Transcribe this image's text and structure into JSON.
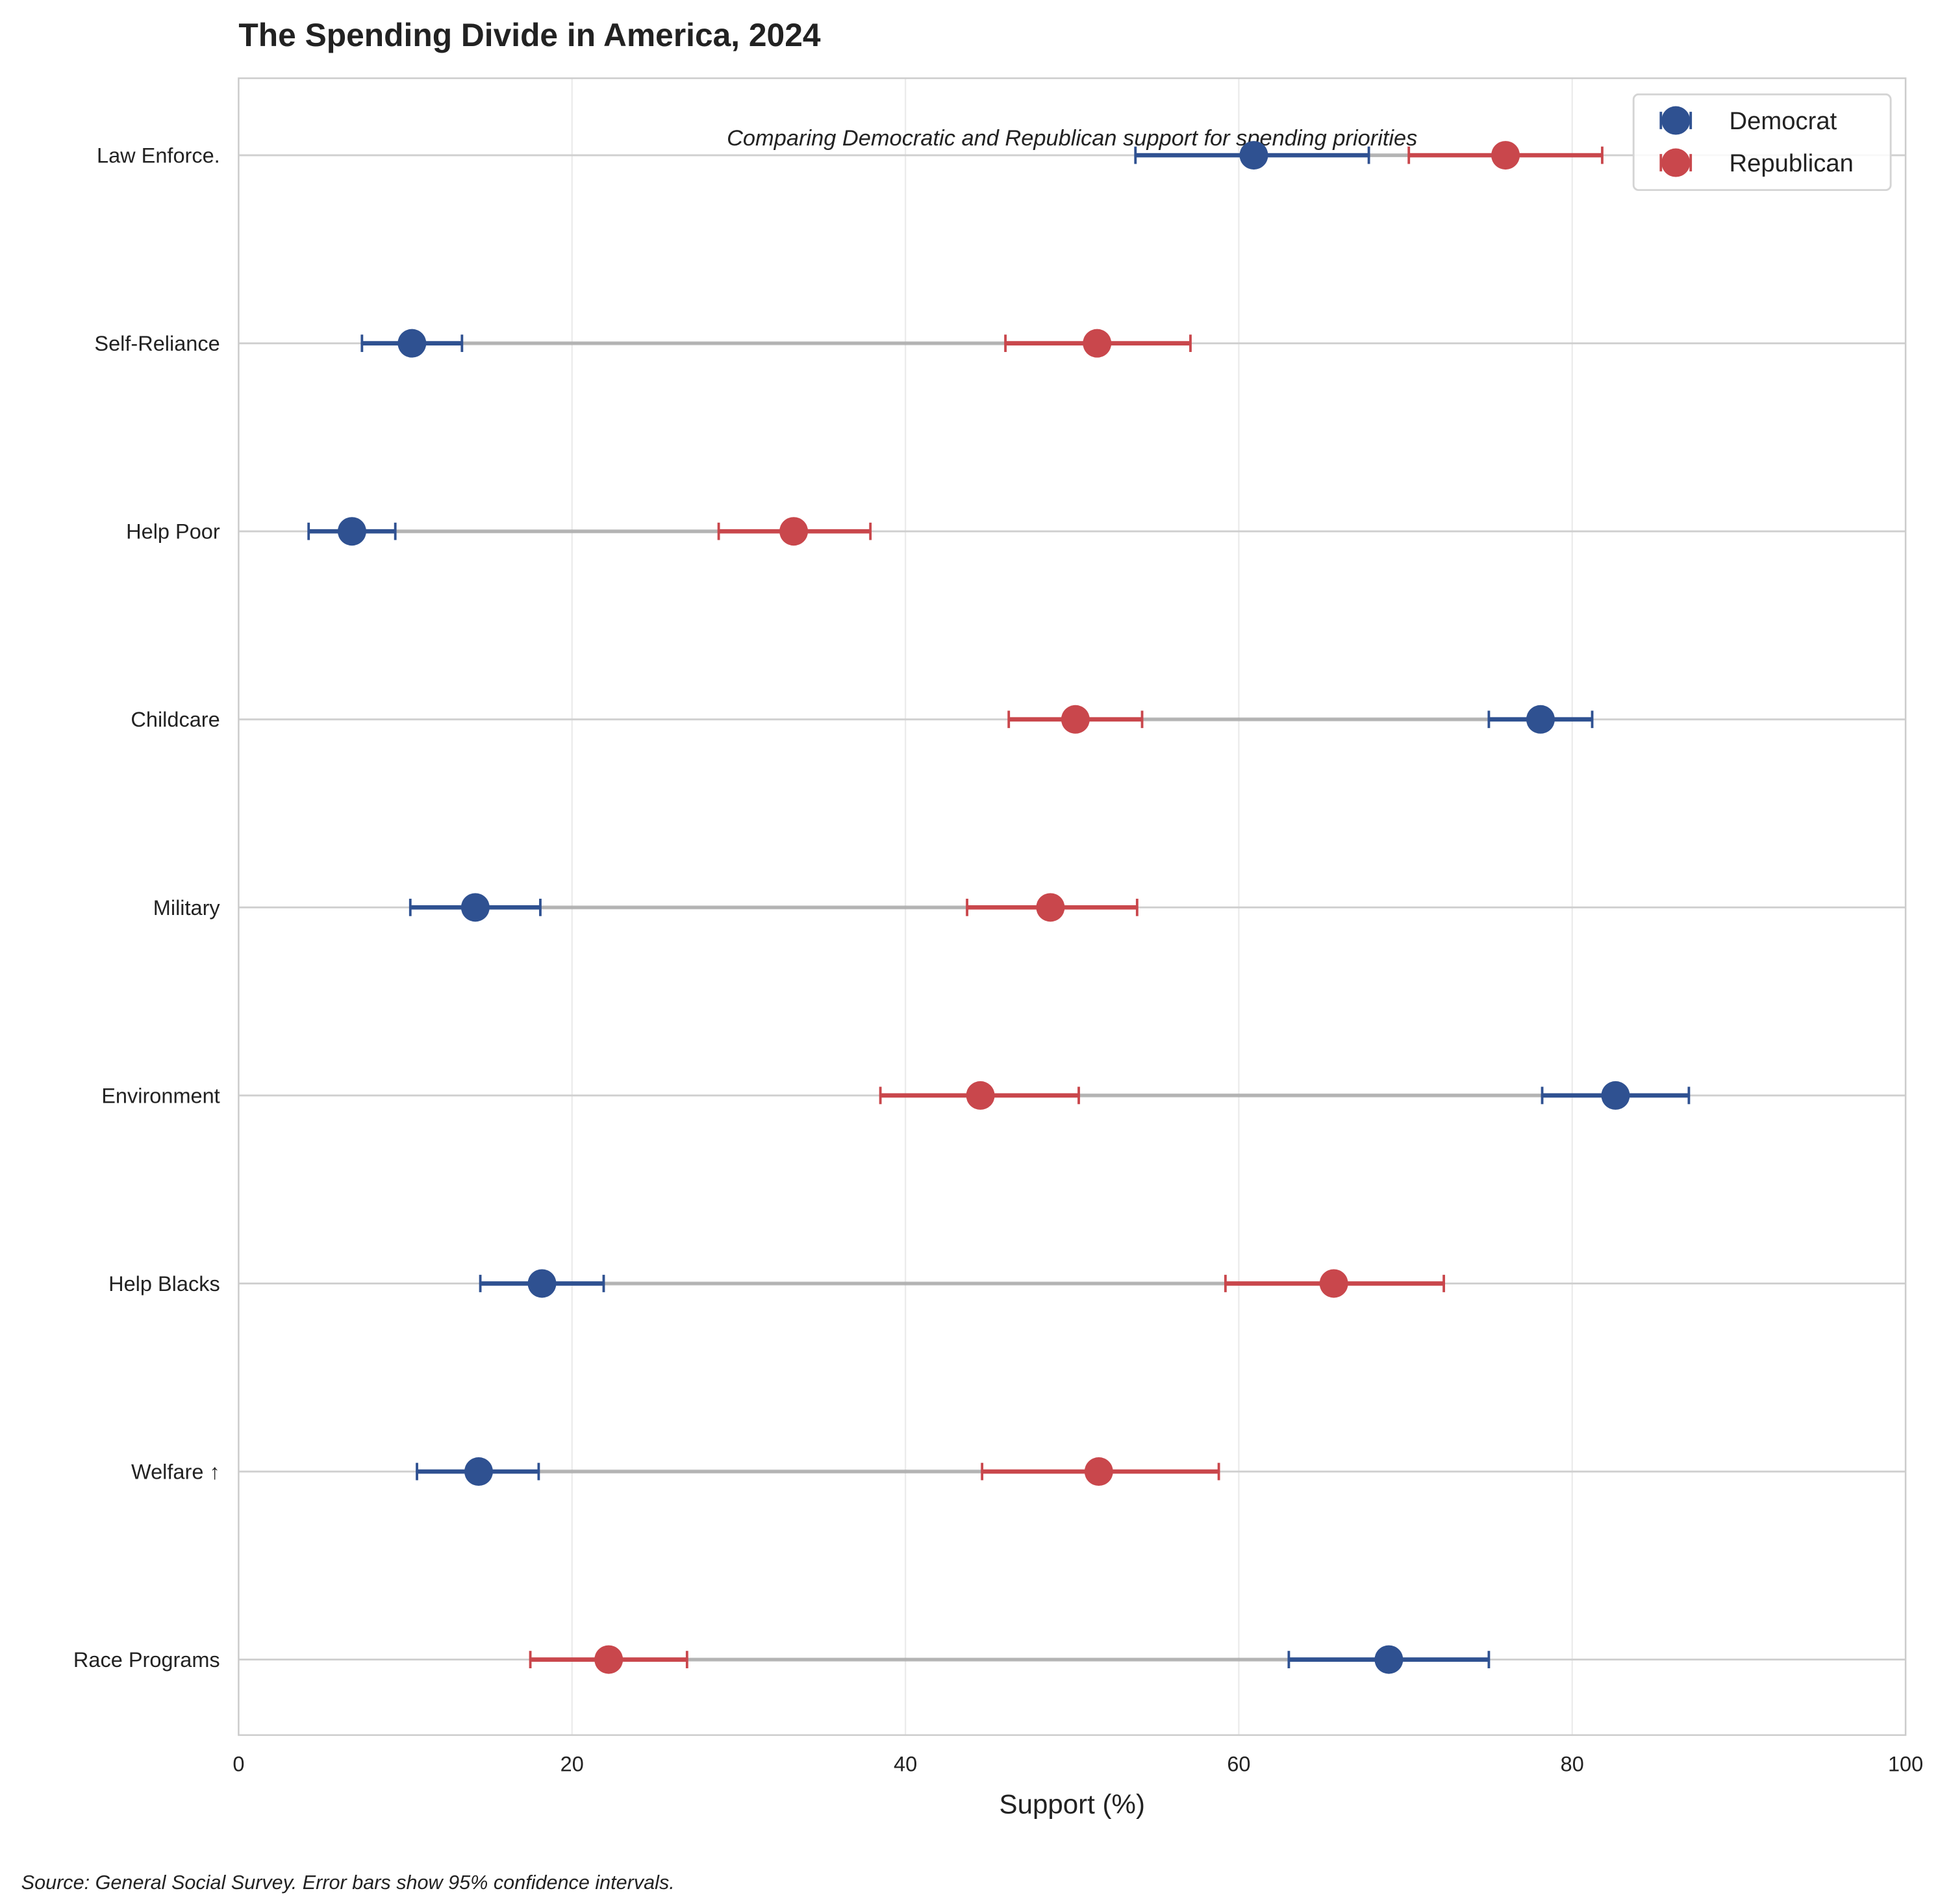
{
  "chart_data": {
    "type": "dot-errorbar",
    "title": "The Spending Divide in America, 2024",
    "subtitle": "Comparing Democratic and Republican support for spending priorities",
    "xlabel": "Support (%)",
    "ylabel": "",
    "xlim": [
      0,
      100
    ],
    "xticks": [
      "0",
      "20",
      "40",
      "60",
      "80",
      "100"
    ],
    "grid": true,
    "legend_position": "top-right",
    "footnote": "Source: General Social Survey. Error bars show 95% confidence intervals.",
    "categories": [
      "Law Enforce.",
      "Self-Reliance",
      "Help Poor",
      "Childcare",
      "Military",
      "Environment",
      "Help Blacks",
      "Welfare ↑",
      "Race Programs"
    ],
    "series": [
      {
        "name": "Democrat",
        "color": "#2f5191",
        "values": [
          60.9,
          10.4,
          6.8,
          78.1,
          14.2,
          82.6,
          18.2,
          14.4,
          69.0
        ],
        "ci_low": [
          53.8,
          7.4,
          4.2,
          75.0,
          10.3,
          78.2,
          14.5,
          10.7,
          63.0
        ],
        "ci_high": [
          67.8,
          13.4,
          9.4,
          81.2,
          18.1,
          87.0,
          21.9,
          18.0,
          75.0
        ]
      },
      {
        "name": "Republican",
        "color": "#c9474c",
        "values": [
          76.0,
          51.5,
          33.3,
          50.2,
          48.7,
          44.5,
          65.7,
          51.6,
          22.2
        ],
        "ci_low": [
          70.2,
          46.0,
          28.8,
          46.2,
          43.7,
          38.5,
          59.2,
          44.6,
          17.5
        ],
        "ci_high": [
          81.8,
          57.1,
          37.9,
          54.2,
          53.9,
          50.4,
          72.3,
          58.8,
          26.9
        ]
      }
    ]
  }
}
